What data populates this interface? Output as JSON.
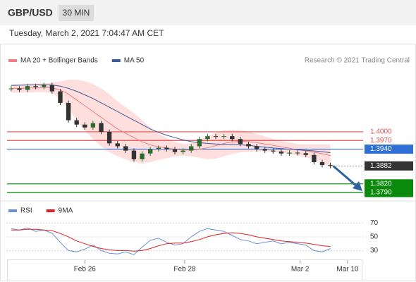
{
  "header": {
    "symbol": "GBP/USD",
    "timeframe": "30 MIN",
    "timestamp": "Tuesday, March 2, 2021 7:04:47 AM CET",
    "credit": "Research © 2021 Trading Central"
  },
  "chart_data": [
    {
      "type": "candlestick",
      "up_color": "#2f6b2f",
      "down_color": "#333333",
      "xlim": [
        -0.5,
        43
      ],
      "ylim": [
        1.3761,
        1.4212
      ],
      "open": [
        1.4148,
        1.415,
        1.4145,
        1.4158,
        1.4155,
        1.4162,
        1.414,
        1.41,
        1.404,
        1.4025,
        1.4015,
        1.403,
        1.4,
        1.396,
        1.395,
        1.3935,
        1.3905,
        1.3925,
        1.394,
        1.3945,
        1.394,
        1.393,
        1.3935,
        1.395,
        1.3975,
        1.3985,
        1.3983,
        1.3985,
        1.3975,
        1.3958,
        1.395,
        1.394,
        1.3935,
        1.3932,
        1.3925,
        1.3928,
        1.3926,
        1.392,
        1.3895,
        1.3885
      ],
      "high": [
        1.4158,
        1.4158,
        1.4166,
        1.4166,
        1.417,
        1.417,
        1.4148,
        1.4108,
        1.4048,
        1.4033,
        1.4038,
        1.4038,
        1.4008,
        1.3968,
        1.3958,
        1.3943,
        1.3933,
        1.3948,
        1.3953,
        1.3953,
        1.3948,
        1.3943,
        1.3958,
        1.3983,
        1.3993,
        1.3993,
        1.3993,
        1.3993,
        1.3983,
        1.3966,
        1.3958,
        1.3948,
        1.3943,
        1.394,
        1.3936,
        1.3936,
        1.3934,
        1.3928,
        1.3903,
        1.3893
      ],
      "low": [
        1.414,
        1.4137,
        1.4137,
        1.4147,
        1.4147,
        1.4132,
        1.4092,
        1.4032,
        1.4017,
        1.4007,
        1.4007,
        1.3992,
        1.3952,
        1.3942,
        1.3927,
        1.3897,
        1.3897,
        1.3917,
        1.3932,
        1.3932,
        1.3922,
        1.3922,
        1.3927,
        1.3942,
        1.3967,
        1.3975,
        1.3975,
        1.3967,
        1.395,
        1.3942,
        1.3932,
        1.3927,
        1.3924,
        1.3917,
        1.3917,
        1.3918,
        1.3912,
        1.3887,
        1.3877,
        1.3874
      ],
      "close": [
        1.415,
        1.4145,
        1.4158,
        1.4155,
        1.4162,
        1.414,
        1.41,
        1.404,
        1.4025,
        1.4015,
        1.403,
        1.4,
        1.396,
        1.395,
        1.3935,
        1.3905,
        1.3925,
        1.394,
        1.3945,
        1.394,
        1.393,
        1.3935,
        1.395,
        1.3975,
        1.3985,
        1.3983,
        1.3985,
        1.3975,
        1.3958,
        1.395,
        1.394,
        1.3935,
        1.3932,
        1.3925,
        1.3928,
        1.3926,
        1.392,
        1.3895,
        1.3885,
        1.3882
      ],
      "series": [
        {
          "name": "MA 20 + Bollinger Bands",
          "color": "#f08080",
          "band_color": "#ffd6d6",
          "values": [
            1.415,
            1.415,
            1.4151,
            1.4152,
            1.4153,
            1.4152,
            1.4145,
            1.413,
            1.411,
            1.409,
            1.407,
            1.405,
            1.403,
            1.401,
            1.3995,
            1.398,
            1.3965,
            1.3955,
            1.3948,
            1.3944,
            1.394,
            1.3937,
            1.3937,
            1.394,
            1.3945,
            1.3952,
            1.396,
            1.3965,
            1.3967,
            1.3966,
            1.3963,
            1.3958,
            1.3953,
            1.3948,
            1.3943,
            1.3938,
            1.3934,
            1.393,
            1.3924,
            1.3918
          ],
          "band_upper": [
            1.4165,
            1.4165,
            1.4166,
            1.4167,
            1.4168,
            1.417,
            1.4175,
            1.418,
            1.418,
            1.4175,
            1.4165,
            1.415,
            1.413,
            1.4105,
            1.4085,
            1.4065,
            1.404,
            1.4015,
            1.3993,
            1.3979,
            1.3965,
            1.3957,
            1.3959,
            1.397,
            1.3985,
            1.3997,
            1.4005,
            1.4007,
            1.4005,
            1.4001,
            1.3993,
            1.3984,
            1.3975,
            1.3968,
            1.3963,
            1.3958,
            1.3956,
            1.3956,
            1.3956,
            1.3956
          ],
          "band_lower": [
            1.4135,
            1.4135,
            1.4136,
            1.4137,
            1.4138,
            1.4134,
            1.4115,
            1.408,
            1.404,
            1.4005,
            1.3975,
            1.395,
            1.393,
            1.3915,
            1.3905,
            1.3895,
            1.389,
            1.3895,
            1.3903,
            1.3909,
            1.3915,
            1.3917,
            1.3915,
            1.391,
            1.3905,
            1.3907,
            1.3915,
            1.3923,
            1.3929,
            1.3931,
            1.3933,
            1.3932,
            1.3931,
            1.3928,
            1.3923,
            1.3918,
            1.3912,
            1.3904,
            1.3892,
            1.388
          ]
        },
        {
          "name": "MA 50",
          "color": "#3a5a9a",
          "values": [
            1.416,
            1.4161,
            1.4162,
            1.4163,
            1.4163,
            1.4162,
            1.4158,
            1.415,
            1.414,
            1.4128,
            1.4115,
            1.41,
            1.4085,
            1.407,
            1.4055,
            1.404,
            1.4025,
            1.401,
            1.3998,
            1.3988,
            1.398,
            1.3972,
            1.3966,
            1.3962,
            1.396,
            1.3958,
            1.3957,
            1.3956,
            1.3955,
            1.3953,
            1.395,
            1.3947,
            1.3944,
            1.3942,
            1.394,
            1.3938,
            1.3936,
            1.3934,
            1.3931,
            1.3928
          ]
        }
      ],
      "levels": [
        {
          "value": 1.4,
          "label": "1.4000",
          "color": "#e05050",
          "style": "plain"
        },
        {
          "value": 1.397,
          "label": "1.3970",
          "color": "#e05050",
          "style": "plain"
        },
        {
          "value": 1.394,
          "label": "1.3940",
          "color": "#2f6fd6",
          "style": "badge"
        },
        {
          "value": 1.3882,
          "label": "1.3882",
          "color": "#333333",
          "style": "last"
        },
        {
          "value": 1.382,
          "label": "1.3820",
          "color": "#0a8a0a",
          "style": "badge"
        },
        {
          "value": 1.379,
          "label": "1.3790",
          "color": "#0a8a0a",
          "style": "badge"
        }
      ]
    },
    {
      "type": "line",
      "xlim": [
        -0.5,
        43
      ],
      "ylim": [
        17,
        87
      ],
      "yticks": [
        30,
        50,
        70
      ],
      "xticks": [
        {
          "value": 9,
          "label": "Feb 26"
        },
        {
          "value": 21.2,
          "label": "Feb 28"
        },
        {
          "value": 35.3,
          "label": "Mar 2"
        },
        {
          "value": 41.1,
          "label": "Mar 10"
        }
      ],
      "series": [
        {
          "name": "RSI",
          "color": "#6a8fd8",
          "values": [
            62,
            60,
            63,
            58,
            60,
            55,
            42,
            30,
            28,
            32,
            38,
            30,
            26,
            25,
            28,
            24,
            35,
            45,
            48,
            42,
            38,
            40,
            50,
            58,
            62,
            60,
            58,
            52,
            46,
            44,
            40,
            42,
            44,
            40,
            42,
            40,
            38,
            30,
            28,
            33
          ]
        },
        {
          "name": "9MA",
          "color": "#e02020",
          "values": [
            60,
            60,
            61,
            61,
            60,
            59,
            55,
            50,
            44,
            40,
            36,
            33,
            31,
            30,
            30,
            29,
            30,
            33,
            37,
            40,
            41,
            41,
            43,
            46,
            50,
            53,
            55,
            56,
            55,
            53,
            50,
            48,
            46,
            44,
            43,
            42,
            41,
            39,
            37,
            36
          ]
        }
      ]
    }
  ]
}
